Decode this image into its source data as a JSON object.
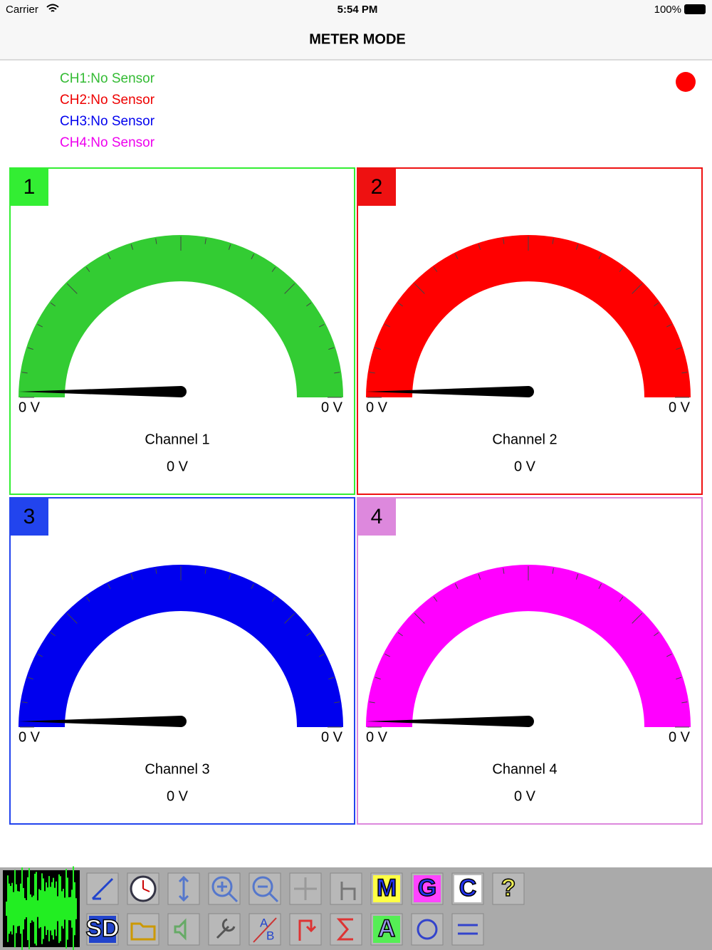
{
  "status_bar": {
    "carrier": "Carrier",
    "time": "5:54 PM",
    "battery": "100%"
  },
  "nav": {
    "title": "METER MODE"
  },
  "sensors": [
    {
      "text": "CH1:No Sensor",
      "color": "#33bb33"
    },
    {
      "text": "CH2:No Sensor",
      "color": "#ee0000"
    },
    {
      "text": "CH3:No Sensor",
      "color": "#0000ee"
    },
    {
      "text": "CH4:No Sensor",
      "color": "#ee00ee"
    }
  ],
  "channels": [
    {
      "number": "1",
      "color": "#33cc33",
      "frame": "#33ee33",
      "min_label": "0 V",
      "max_label": "0 V",
      "name": "Channel 1",
      "reading": "0 V"
    },
    {
      "number": "2",
      "color": "#ff0000",
      "frame": "#ee1111",
      "min_label": "0 V",
      "max_label": "0 V",
      "name": "Channel 2",
      "reading": "0 V"
    },
    {
      "number": "3",
      "color": "#0000ee",
      "frame": "#2244ee",
      "min_label": "0 V",
      "max_label": "0 V",
      "name": "Channel 3",
      "reading": "0 V"
    },
    {
      "number": "4",
      "color": "#ff00ff",
      "frame": "#dd88dd",
      "min_label": "0 V",
      "max_label": "0 V",
      "name": "Channel 4",
      "reading": "0 V"
    }
  ],
  "toolbar": {
    "icon_text": {
      "m": "M",
      "g": "G",
      "c": "C",
      "help": "?",
      "sd": "SD",
      "ab_a": "A",
      "ab_b": "B",
      "a": "A"
    }
  }
}
